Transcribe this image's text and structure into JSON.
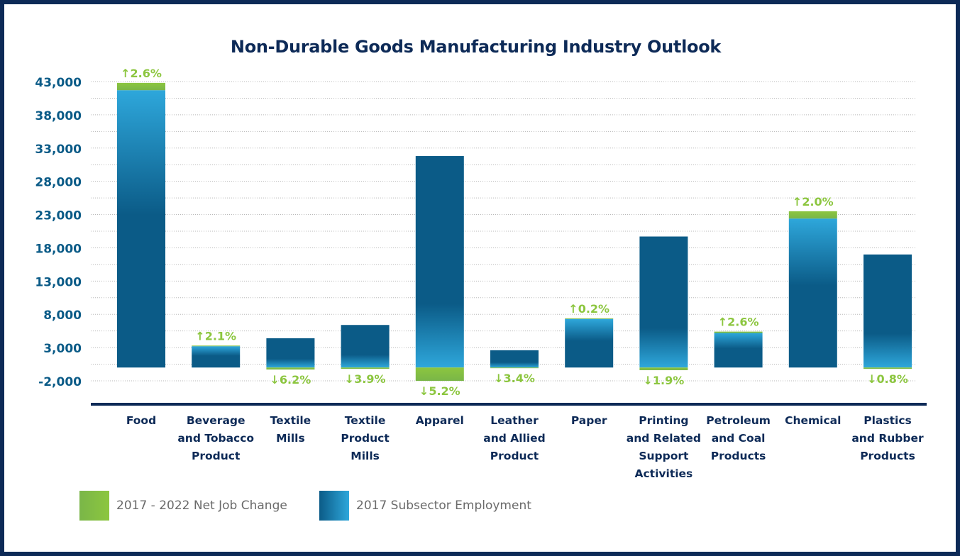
{
  "chart_data": {
    "type": "bar",
    "title": "Non-Durable Goods Manufacturing Industry Outlook",
    "yticks": [
      "43,000",
      "38,000",
      "33,000",
      "28,000",
      "23,000",
      "18,000",
      "13,000",
      "8,000",
      "3,000",
      "-2,000"
    ],
    "ylim": [
      -2000,
      43000
    ],
    "categories": [
      [
        "Food"
      ],
      [
        "Beverage",
        "and Tobacco",
        "Product"
      ],
      [
        "Textile",
        "Mills"
      ],
      [
        "Textile",
        "Product",
        "Mills"
      ],
      [
        "Apparel"
      ],
      [
        "Leather",
        "and Allied",
        "Product"
      ],
      [
        "Paper"
      ],
      [
        "Printing",
        "and Related",
        "Support",
        "Activities"
      ],
      [
        "Petroleum",
        "and Coal",
        "Products"
      ],
      [
        "Chemical"
      ],
      [
        "Plastics",
        "and Rubber",
        "Products"
      ]
    ],
    "series": [
      {
        "name": "2017 Subsector Employment",
        "values": [
          41700,
          3200,
          4400,
          6400,
          31800,
          2600,
          7300,
          19700,
          5200,
          22400,
          17000
        ]
      },
      {
        "name": "2017 - 2022 Net Job Change",
        "values": [
          1100,
          100,
          -300,
          -200,
          -2000,
          -100,
          100,
          -400,
          200,
          1100,
          -200
        ]
      }
    ],
    "change_labels": [
      {
        "text": "↑2.6%",
        "direction": "up"
      },
      {
        "text": "↑2.1%",
        "direction": "up"
      },
      {
        "text": "↓6.2%",
        "direction": "down"
      },
      {
        "text": "↓3.9%",
        "direction": "down"
      },
      {
        "text": "↓5.2%",
        "direction": "down"
      },
      {
        "text": "↓3.4%",
        "direction": "down"
      },
      {
        "text": "↑0.2%",
        "direction": "up"
      },
      {
        "text": "↓1.9%",
        "direction": "down"
      },
      {
        "text": "↑2.6%",
        "direction": "up"
      },
      {
        "text": "↑2.0%",
        "direction": "up"
      },
      {
        "text": "↓0.8%",
        "direction": "down"
      }
    ],
    "legend": [
      {
        "label": "2017 - 2022 Net Job Change",
        "color": "#8cc63f"
      },
      {
        "label": "2017 Subsector Employment",
        "color": "#0b5b87"
      }
    ],
    "colors": {
      "navy": "#0d2a57",
      "employment": "#0b5b87",
      "employment_light": "#2ea7db",
      "change": "#8cc63f",
      "tick_text": "#0b5b87"
    },
    "grid": true,
    "legend_position": "bottom-left"
  }
}
